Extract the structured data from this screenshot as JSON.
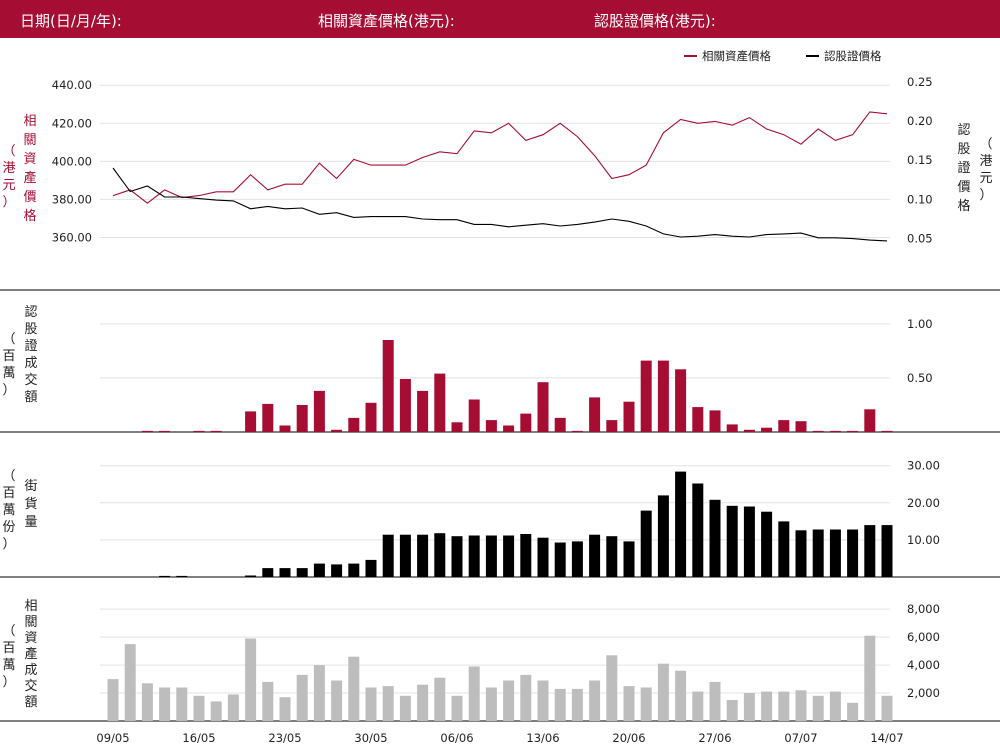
{
  "header": {
    "date_label": "日期(日/月/年):",
    "underlying_label": "相關資產價格(港元):",
    "warrant_label": "認股證價格(港元):"
  },
  "colors": {
    "header_bg": "#a50d33",
    "underlying": "#a50d33",
    "warrant": "#000000",
    "turnover": "#bdbdbd"
  },
  "chart_data": [
    {
      "type": "line",
      "legend": [
        "相關資產價格",
        "認股證價格"
      ],
      "left_axis": {
        "label": [
          "相",
          "關",
          "資",
          "產",
          "價",
          "格"
        ],
        "unit": [
          "（",
          "港",
          "元",
          "）"
        ],
        "ticks": [
          "440.00",
          "420.00",
          "400.00",
          "380.00",
          "360.00"
        ],
        "range": [
          345,
          448
        ]
      },
      "right_axis": {
        "label": [
          "認",
          "股",
          "證",
          "價",
          "格"
        ],
        "unit": [
          "（",
          "港",
          "元",
          "）"
        ],
        "ticks": [
          "0.25",
          "0.20",
          "0.15",
          "0.10",
          "0.05"
        ],
        "range": [
          0.015,
          0.265
        ]
      },
      "underlying": [
        382,
        385,
        378,
        385,
        381,
        382,
        384,
        384,
        393,
        385,
        388,
        388,
        399,
        391,
        401,
        398,
        398,
        398,
        402,
        405,
        404,
        416,
        415,
        420,
        411,
        414,
        420,
        413,
        403,
        391,
        393,
        398,
        415,
        422,
        420,
        421,
        419,
        423,
        417,
        414,
        409,
        417,
        411,
        414,
        426,
        425
      ],
      "warrant": [
        0.14,
        0.11,
        0.117,
        0.103,
        0.103,
        0.101,
        0.099,
        0.098,
        0.088,
        0.091,
        0.088,
        0.089,
        0.081,
        0.083,
        0.077,
        0.078,
        0.078,
        0.078,
        0.075,
        0.074,
        0.074,
        0.068,
        0.068,
        0.065,
        0.067,
        0.069,
        0.066,
        0.068,
        0.071,
        0.075,
        0.072,
        0.066,
        0.056,
        0.052,
        0.053,
        0.055,
        0.053,
        0.052,
        0.055,
        0.056,
        0.057,
        0.051,
        0.051,
        0.05,
        0.048,
        0.047
      ]
    },
    {
      "type": "bar",
      "label": [
        "認",
        "股",
        "證",
        "成",
        "交",
        "額"
      ],
      "unit": [
        "（",
        "百",
        "萬",
        "）"
      ],
      "ticks": [
        "1.00",
        "0.50"
      ],
      "range": [
        0,
        1.1
      ],
      "values": [
        0,
        0,
        0.01,
        0.01,
        0,
        0.01,
        0.01,
        0,
        0.19,
        0.26,
        0.06,
        0.25,
        0.38,
        0.02,
        0.13,
        0.27,
        0.85,
        0.49,
        0.38,
        0.54,
        0.09,
        0.3,
        0.11,
        0.06,
        0.17,
        0.46,
        0.13,
        0.01,
        0.32,
        0.11,
        0.28,
        0.66,
        0.66,
        0.58,
        0.23,
        0.2,
        0.07,
        0.02,
        0.04,
        0.11,
        0.1,
        0.01,
        0.01,
        0.01,
        0.21,
        0.01
      ]
    },
    {
      "type": "bar",
      "label": [
        "街",
        "貨",
        "量"
      ],
      "unit": [
        "（",
        "百",
        "萬",
        "份",
        "）"
      ],
      "ticks": [
        "30.00",
        "20.00",
        "10.00"
      ],
      "range": [
        0,
        31
      ],
      "values": [
        0,
        0,
        0,
        0.3,
        0.3,
        0,
        0,
        0,
        0.4,
        2.4,
        2.4,
        2.4,
        3.6,
        3.4,
        3.6,
        4.6,
        11.4,
        11.4,
        11.4,
        11.8,
        11,
        11.2,
        11.2,
        11.2,
        11.6,
        10.6,
        9.3,
        9.6,
        11.4,
        11,
        9.6,
        17.9,
        22,
        28.4,
        25.2,
        20.8,
        19.2,
        19,
        17.6,
        15,
        12.6,
        12.8,
        12.8,
        12.8,
        14,
        14
      ]
    },
    {
      "type": "bar",
      "label": [
        "相",
        "關",
        "資",
        "產",
        "成",
        "交",
        "額"
      ],
      "unit": [
        "（",
        "百",
        "萬",
        "）"
      ],
      "ticks": [
        "8,000",
        "6,000",
        "4,000",
        "2,000"
      ],
      "range": [
        0,
        8800
      ],
      "values": [
        3000,
        5500,
        2700,
        2400,
        2400,
        1800,
        1400,
        1900,
        5900,
        2800,
        1700,
        3300,
        4000,
        2900,
        4600,
        2400,
        2500,
        1800,
        2600,
        3100,
        1800,
        3900,
        2400,
        2900,
        3300,
        2900,
        2300,
        2300,
        2900,
        4700,
        2500,
        2400,
        4100,
        3600,
        2100,
        2800,
        1500,
        2000,
        2100,
        2100,
        2200,
        1800,
        2100,
        1300,
        6100,
        1800
      ],
      "x_ticks": [
        "09/05",
        "16/05",
        "23/05",
        "30/05",
        "06/06",
        "13/06",
        "20/06",
        "27/06",
        "07/07",
        "14/07"
      ],
      "x_tick_index": [
        0,
        5,
        10,
        15,
        20,
        25,
        30,
        35,
        40,
        45
      ]
    }
  ]
}
